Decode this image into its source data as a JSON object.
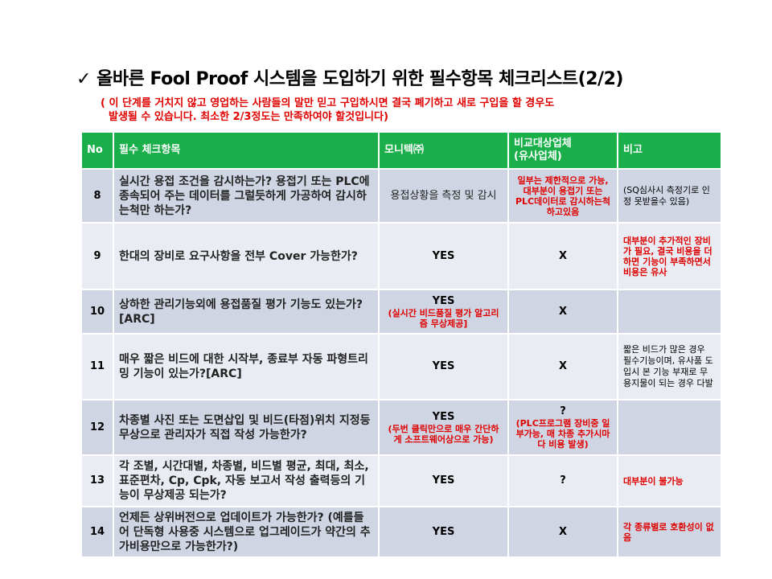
{
  "title": "✓ 올바른 Fool Proof 시스템을 도입하기 위한 필수항목 체크리스트(2/2)",
  "subtitle": {
    "line1": "( 이 단계를 거치지 않고 영업하는 사람들의 말만 믿고 구입하시면 결국 폐기하고 새로 구입을 할 경우도",
    "line2": "발생될 수 있습니다. 최소한 2/3정도는 만족하여야 할것입니다)"
  },
  "colors": {
    "header": "#1aaf4a",
    "row_dark": "#cfd5e3",
    "row_light": "#e9ecf2",
    "highlight": "#e00000"
  },
  "table": {
    "headers": [
      "No",
      "필수 체크항목",
      "모니텍㈜",
      "비교대상업체\n(유사업체)",
      "비고"
    ],
    "rows": [
      {
        "no": "8",
        "q": "실시간 용접 조건을 감시하는가? 용접기 또는 PLC에 종속되어 주는 데이터를 그럴듯하게 가공하여 감시하는척만 하는가?",
        "m": {
          "main": "",
          "red": "",
          "plain": "용접상황을 측정 및 감시"
        },
        "c": {
          "main": "",
          "red": "일부는 제한적으로 가능,대부분이 용접기 또는 PLC데이터로 감시하는척 하고있음"
        },
        "n": {
          "text": "(SQ심사시 측정기로 인정 못받을수 있음)",
          "red": false
        }
      },
      {
        "no": "9",
        "q": "한대의 장비로 요구사항을 전부 Cover 가능한가?",
        "m": {
          "main": "YES",
          "red": ""
        },
        "c": {
          "main": "X",
          "red": ""
        },
        "n": {
          "text": "대부분이 추가적인 장비가 필요, 결국 비용을 더하면 기능이 부족하면서 비용은 유사",
          "red": true
        }
      },
      {
        "no": "10",
        "q": "상하한 관리기능외에 용접품질 평가 기능도 있는가? [ARC]",
        "m": {
          "main": "YES",
          "red": "(실시간 비드품질 평가 알고리즘 무상제공]"
        },
        "c": {
          "main": "X",
          "red": ""
        },
        "n": {
          "text": "",
          "red": false
        }
      },
      {
        "no": "11",
        "q": "매우 짧은 비드에 대한 시작부, 종료부 자동 파형트리밍 기능이 있는가?[ARC]",
        "m": {
          "main": "YES",
          "red": ""
        },
        "c": {
          "main": "X",
          "red": ""
        },
        "n": {
          "text": "짧은 비드가 많은 경우 필수기능이며, 유사품 도입시 본 기능 부재로 무용지물이 되는 경우 다발",
          "red": false
        }
      },
      {
        "no": "12",
        "q": "차종별 사진 또는 도면삽입 및 비드(타점)위치 지정등 무상으로 관리자가 직접 작성 가능한가?",
        "m": {
          "main": "YES",
          "red": "(두번 클릭만으로 매우 간단하게 소프트웨어상으로 가능)"
        },
        "c": {
          "main": "?",
          "red": "(PLC프로그램 장비중 일부가능, 매 차종 추가시마다 비용 발생)"
        },
        "n": {
          "text": "",
          "red": false
        }
      },
      {
        "no": "13",
        "q": "각 조별, 시간대별, 차종별, 비드별 평균, 최대, 최소, 표준편차, Cp, Cpk, 자동 보고서 작성 출력등의 기능이 무상제공 되는가?",
        "m": {
          "main": "YES",
          "red": ""
        },
        "c": {
          "main": "?",
          "red": ""
        },
        "n": {
          "text": "대부분이 불가능",
          "red": true
        }
      },
      {
        "no": "14",
        "q": "언제든 상위버전으로 업데이트가 가능한가? (예를들어 단독형 사용중 시스템으로 업그레이드가 약간의 추가비용만으로 가능한가?)",
        "m": {
          "main": "YES",
          "red": ""
        },
        "c": {
          "main": "X",
          "red": ""
        },
        "n": {
          "text": "각 종류별로 호환성이 없음",
          "red": true
        }
      }
    ]
  }
}
